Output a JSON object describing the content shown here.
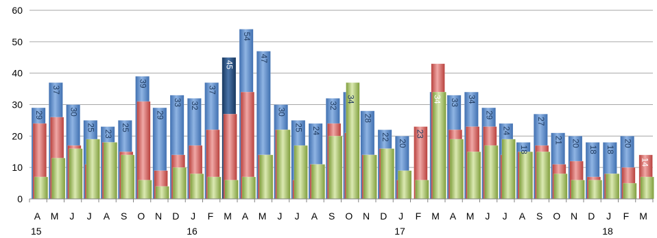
{
  "chart_data": {
    "type": "bar",
    "categories": [
      "A",
      "M",
      "J",
      "J",
      "A",
      "S",
      "O",
      "N",
      "D",
      "J",
      "F",
      "M",
      "A",
      "M",
      "J",
      "J",
      "A",
      "S",
      "O",
      "N",
      "D",
      "J",
      "F",
      "M",
      "A",
      "M",
      "J",
      "J",
      "A",
      "S",
      "O",
      "N",
      "D",
      "J",
      "F",
      "M"
    ],
    "year_labels": [
      {
        "index": 0,
        "label": "15"
      },
      {
        "index": 9,
        "label": "16"
      },
      {
        "index": 21,
        "label": "17"
      },
      {
        "index": 33,
        "label": "18"
      }
    ],
    "series": [
      {
        "color": "#4f81bd",
        "values": [
          29,
          37,
          30,
          25,
          23,
          25,
          39,
          29,
          33,
          32,
          37,
          45,
          54,
          47,
          30,
          25,
          24,
          32,
          34,
          28,
          22,
          20,
          null,
          34,
          33,
          34,
          29,
          24,
          18,
          27,
          21,
          20,
          18,
          18,
          20,
          null
        ]
      },
      {
        "color": "#c0504d",
        "values": [
          24,
          26,
          17,
          11,
          18,
          15,
          31,
          9,
          14,
          17,
          22,
          27,
          34,
          14,
          22,
          6,
          11,
          24,
          21,
          14,
          16,
          6,
          23,
          43,
          22,
          23,
          23,
          14,
          15,
          17,
          11,
          12,
          7,
          8,
          10,
          14
        ]
      },
      {
        "color": "#9bbb59",
        "values": [
          7,
          13,
          16,
          19,
          18,
          14,
          6,
          4,
          10,
          8,
          7,
          6,
          7,
          14,
          22,
          17,
          11,
          20,
          37,
          14,
          16,
          9,
          6,
          34,
          19,
          15,
          17,
          19,
          15,
          15,
          8,
          6,
          6,
          8,
          5,
          7
        ]
      }
    ],
    "data_labels": [
      {
        "index": 0,
        "text": "29"
      },
      {
        "index": 1,
        "text": "37"
      },
      {
        "index": 2,
        "text": "30"
      },
      {
        "index": 3,
        "text": "25"
      },
      {
        "index": 4,
        "text": "23"
      },
      {
        "index": 5,
        "text": "25"
      },
      {
        "index": 6,
        "text": "39"
      },
      {
        "index": 7,
        "text": "29"
      },
      {
        "index": 8,
        "text": "33"
      },
      {
        "index": 9,
        "text": "32"
      },
      {
        "index": 10,
        "text": "37"
      },
      {
        "index": 11,
        "text": "45",
        "light": true
      },
      {
        "index": 12,
        "text": "54"
      },
      {
        "index": 13,
        "text": "47"
      },
      {
        "index": 14,
        "text": "30"
      },
      {
        "index": 15,
        "text": "25"
      },
      {
        "index": 16,
        "text": "24"
      },
      {
        "index": 17,
        "text": "32"
      },
      {
        "index": 18,
        "text": "34"
      },
      {
        "index": 19,
        "text": "28"
      },
      {
        "index": 20,
        "text": "22"
      },
      {
        "index": 21,
        "text": "20"
      },
      {
        "index": 22,
        "text": "23"
      },
      {
        "index": 23,
        "text": "34",
        "light": true
      },
      {
        "index": 24,
        "text": "33"
      },
      {
        "index": 25,
        "text": "34"
      },
      {
        "index": 26,
        "text": "29"
      },
      {
        "index": 27,
        "text": "24"
      },
      {
        "index": 28,
        "text": "18"
      },
      {
        "index": 29,
        "text": "27"
      },
      {
        "index": 30,
        "text": "21"
      },
      {
        "index": 31,
        "text": "20"
      },
      {
        "index": 32,
        "text": "18"
      },
      {
        "index": 33,
        "text": "18"
      },
      {
        "index": 34,
        "text": "20"
      },
      {
        "index": 35,
        "text": "14",
        "light": true
      }
    ],
    "ylim": [
      0,
      60
    ],
    "yticks": [
      0,
      10,
      20,
      30,
      40,
      50,
      60
    ],
    "grid": true,
    "highlight": {
      "index": 11,
      "color": "#1f497d"
    }
  }
}
